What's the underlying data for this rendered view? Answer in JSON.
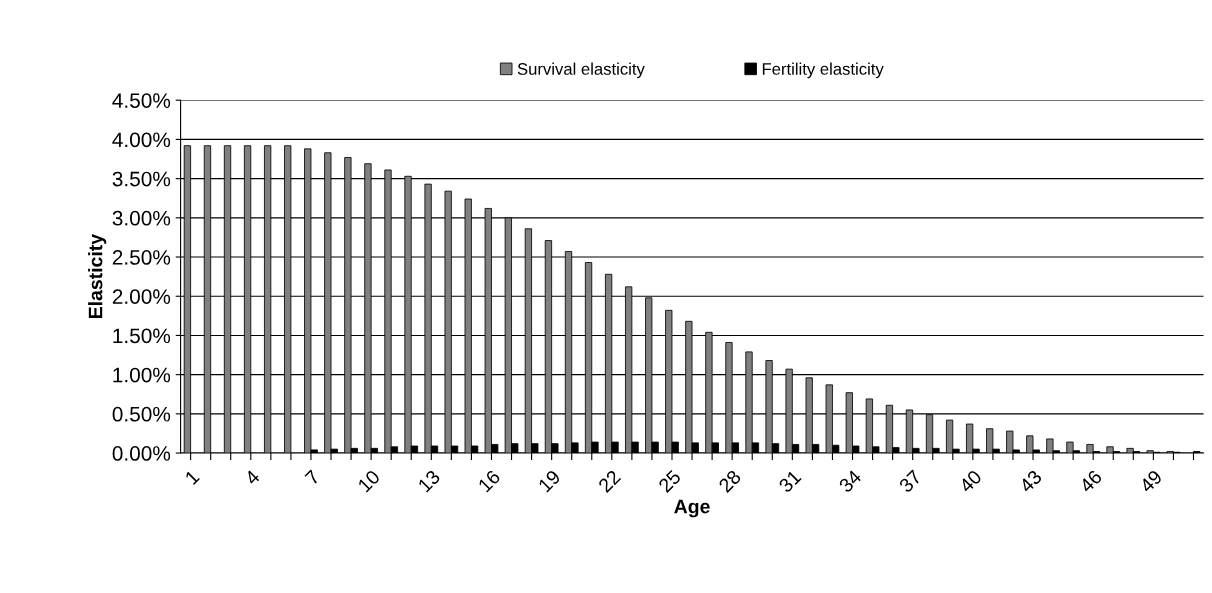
{
  "chart_data": {
    "type": "bar",
    "xlabel": "Age",
    "ylabel": "Elasticity",
    "categories": [
      "1",
      null,
      null,
      "4",
      null,
      null,
      "7",
      null,
      null,
      "10",
      null,
      null,
      "13",
      null,
      null,
      "16",
      null,
      null,
      "19",
      null,
      null,
      "22",
      null,
      null,
      "25",
      null,
      null,
      "28",
      null,
      null,
      "31",
      null,
      null,
      "34",
      null,
      null,
      "37",
      null,
      null,
      "40",
      null,
      null,
      "43",
      null,
      null,
      "46",
      null,
      null,
      "49",
      null,
      null
    ],
    "series": [
      {
        "name": "Survival elasticity",
        "color": "#808080",
        "values": [
          3.92,
          3.92,
          3.92,
          3.92,
          3.92,
          3.92,
          3.88,
          3.83,
          3.77,
          3.69,
          3.61,
          3.53,
          3.43,
          3.34,
          3.24,
          3.12,
          3.0,
          2.86,
          2.71,
          2.57,
          2.43,
          2.28,
          2.12,
          1.98,
          1.82,
          1.68,
          1.54,
          1.41,
          1.29,
          1.18,
          1.07,
          0.96,
          0.87,
          0.77,
          0.69,
          0.61,
          0.55,
          0.49,
          0.42,
          0.37,
          0.31,
          0.28,
          0.22,
          0.18,
          0.14,
          0.11,
          0.08,
          0.06,
          0.03,
          0.02,
          null
        ]
      },
      {
        "name": "Fertility elasticity",
        "color": "#000000",
        "values": [
          null,
          null,
          null,
          null,
          null,
          null,
          0.04,
          0.05,
          0.06,
          0.06,
          0.08,
          0.09,
          0.09,
          0.09,
          0.09,
          0.11,
          0.12,
          0.12,
          0.12,
          0.13,
          0.14,
          0.14,
          0.14,
          0.14,
          0.14,
          0.13,
          0.13,
          0.13,
          0.13,
          0.12,
          0.11,
          0.11,
          0.1,
          0.09,
          0.08,
          0.07,
          0.06,
          0.06,
          0.05,
          0.05,
          0.05,
          0.04,
          0.04,
          0.03,
          0.03,
          0.02,
          0.02,
          0.02,
          0.01,
          0.01,
          0.02
        ]
      }
    ],
    "ylim": [
      0,
      4.5
    ],
    "yticks": [
      {
        "value": 0,
        "label": "0.00%"
      },
      {
        "value": 0.5,
        "label": "0.50%"
      },
      {
        "value": 1,
        "label": "1.00%"
      },
      {
        "value": 1.5,
        "label": "1.50%"
      },
      {
        "value": 2,
        "label": "2.00%"
      },
      {
        "value": 2.5,
        "label": "2.50%"
      },
      {
        "value": 3,
        "label": "3.00%"
      },
      {
        "value": 3.5,
        "label": "3.50%"
      },
      {
        "value": 4,
        "label": "4.00%"
      },
      {
        "value": 4.5,
        "label": "4.50%"
      }
    ],
    "grid": "y",
    "legend": "top"
  }
}
